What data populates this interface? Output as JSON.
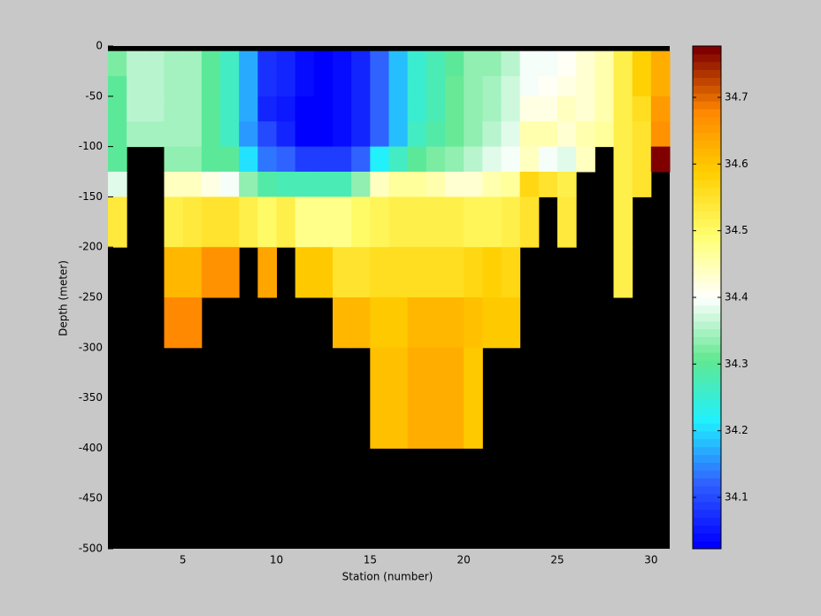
{
  "chart_data": {
    "type": "heatmap",
    "xlabel": "Station (number)",
    "ylabel": "Depth (meter)",
    "x": [
      1,
      2,
      3,
      4,
      5,
      6,
      7,
      8,
      9,
      10,
      11,
      12,
      13,
      14,
      15,
      16,
      17,
      18,
      19,
      20,
      21,
      22,
      23,
      24,
      25,
      26,
      27,
      28,
      29,
      30,
      31
    ],
    "y": [
      -5,
      -30,
      -50,
      -75,
      -100,
      -125,
      -150,
      -200,
      -250,
      -300,
      -400,
      -500
    ],
    "values": [
      [
        34.32,
        34.36,
        34.36,
        34.35,
        34.35,
        34.3,
        34.27,
        34.17,
        34.08,
        34.06,
        34.04,
        34.03,
        34.04,
        34.07,
        34.12,
        34.18,
        34.25,
        34.28,
        34.3,
        34.33,
        34.34,
        34.36,
        34.4,
        34.4,
        34.41,
        34.43,
        34.45,
        34.52,
        34.58,
        34.63
      ],
      [
        34.3,
        34.36,
        34.36,
        34.35,
        34.35,
        34.3,
        34.27,
        34.17,
        34.08,
        34.06,
        34.04,
        34.03,
        34.04,
        34.07,
        34.12,
        34.18,
        34.25,
        34.28,
        34.31,
        34.33,
        34.35,
        34.37,
        34.4,
        34.41,
        34.42,
        34.43,
        34.45,
        34.52,
        34.58,
        34.63
      ],
      [
        34.3,
        34.36,
        34.36,
        34.35,
        34.35,
        34.3,
        34.26,
        34.17,
        34.07,
        34.05,
        34.03,
        34.03,
        34.04,
        34.06,
        34.12,
        34.18,
        34.25,
        34.28,
        34.31,
        34.34,
        34.35,
        34.37,
        34.42,
        34.42,
        34.44,
        34.43,
        34.45,
        34.52,
        34.56,
        34.65
      ],
      [
        34.3,
        34.35,
        34.35,
        34.35,
        34.35,
        34.3,
        34.26,
        34.16,
        34.1,
        34.07,
        34.03,
        34.03,
        34.04,
        34.06,
        34.12,
        34.18,
        34.26,
        34.29,
        34.31,
        34.34,
        34.36,
        34.38,
        34.45,
        34.45,
        34.43,
        34.45,
        34.46,
        34.52,
        34.55,
        34.66
      ],
      [
        34.3,
        null,
        null,
        34.34,
        34.34,
        34.3,
        34.3,
        34.2,
        34.14,
        34.12,
        34.09,
        34.09,
        34.09,
        34.12,
        34.22,
        34.26,
        34.3,
        34.32,
        34.33,
        34.36,
        34.38,
        34.4,
        34.44,
        34.4,
        34.38,
        34.44,
        null,
        34.52,
        34.55,
        34.77
      ],
      [
        34.38,
        null,
        null,
        34.44,
        34.44,
        34.42,
        34.4,
        34.33,
        34.29,
        34.28,
        34.28,
        34.28,
        34.28,
        34.33,
        34.44,
        34.47,
        34.47,
        34.45,
        34.43,
        34.43,
        34.45,
        34.46,
        34.57,
        34.55,
        34.52,
        null,
        null,
        34.52,
        34.55,
        null
      ],
      [
        34.53,
        null,
        null,
        34.52,
        34.53,
        34.55,
        34.55,
        34.52,
        34.5,
        34.52,
        34.48,
        34.48,
        34.48,
        34.5,
        34.51,
        34.52,
        34.52,
        34.52,
        34.52,
        34.51,
        34.51,
        34.52,
        34.55,
        null,
        34.53,
        null,
        null,
        34.52,
        null,
        null
      ],
      [
        null,
        null,
        null,
        34.62,
        34.62,
        34.66,
        34.66,
        null,
        34.64,
        null,
        34.6,
        34.6,
        34.55,
        34.55,
        34.56,
        34.56,
        34.56,
        34.56,
        34.56,
        34.57,
        34.58,
        34.57,
        null,
        null,
        null,
        null,
        null,
        34.52,
        null,
        null
      ],
      [
        null,
        null,
        null,
        34.68,
        34.68,
        null,
        null,
        null,
        null,
        null,
        null,
        null,
        34.62,
        34.62,
        34.6,
        34.6,
        34.62,
        34.62,
        34.62,
        34.61,
        34.6,
        34.6,
        null,
        null,
        null,
        null,
        null,
        null,
        null,
        null
      ],
      [
        null,
        null,
        null,
        null,
        null,
        null,
        null,
        null,
        null,
        null,
        null,
        null,
        null,
        null,
        34.61,
        34.61,
        34.63,
        34.63,
        34.63,
        34.6,
        null,
        null,
        null,
        null,
        null,
        null,
        null,
        null,
        null,
        null
      ],
      [
        null,
        null,
        null,
        null,
        null,
        null,
        null,
        null,
        null,
        null,
        null,
        null,
        null,
        null,
        null,
        null,
        null,
        null,
        null,
        null,
        null,
        null,
        null,
        null,
        null,
        null,
        null,
        null,
        null,
        null
      ]
    ],
    "xlim": [
      1,
      31
    ],
    "ylim": [
      -500,
      0
    ],
    "xticks": [
      5,
      10,
      15,
      20,
      25,
      30
    ],
    "yticks": [
      0,
      -50,
      -100,
      -150,
      -200,
      -250,
      -300,
      -350,
      -400,
      -450,
      -500
    ],
    "clim": [
      34.023,
      34.777
    ],
    "cticks": [
      34.1,
      34.2,
      34.3,
      34.4,
      34.5,
      34.6,
      34.7
    ],
    "colormap": [
      "#0000ff",
      "#3060ff",
      "#20f0ff",
      "#60e890",
      "#ffffff",
      "#ffff70",
      "#ffd000",
      "#ff8800",
      "#800000"
    ],
    "colormap_levels": 64,
    "background": "#000000"
  }
}
